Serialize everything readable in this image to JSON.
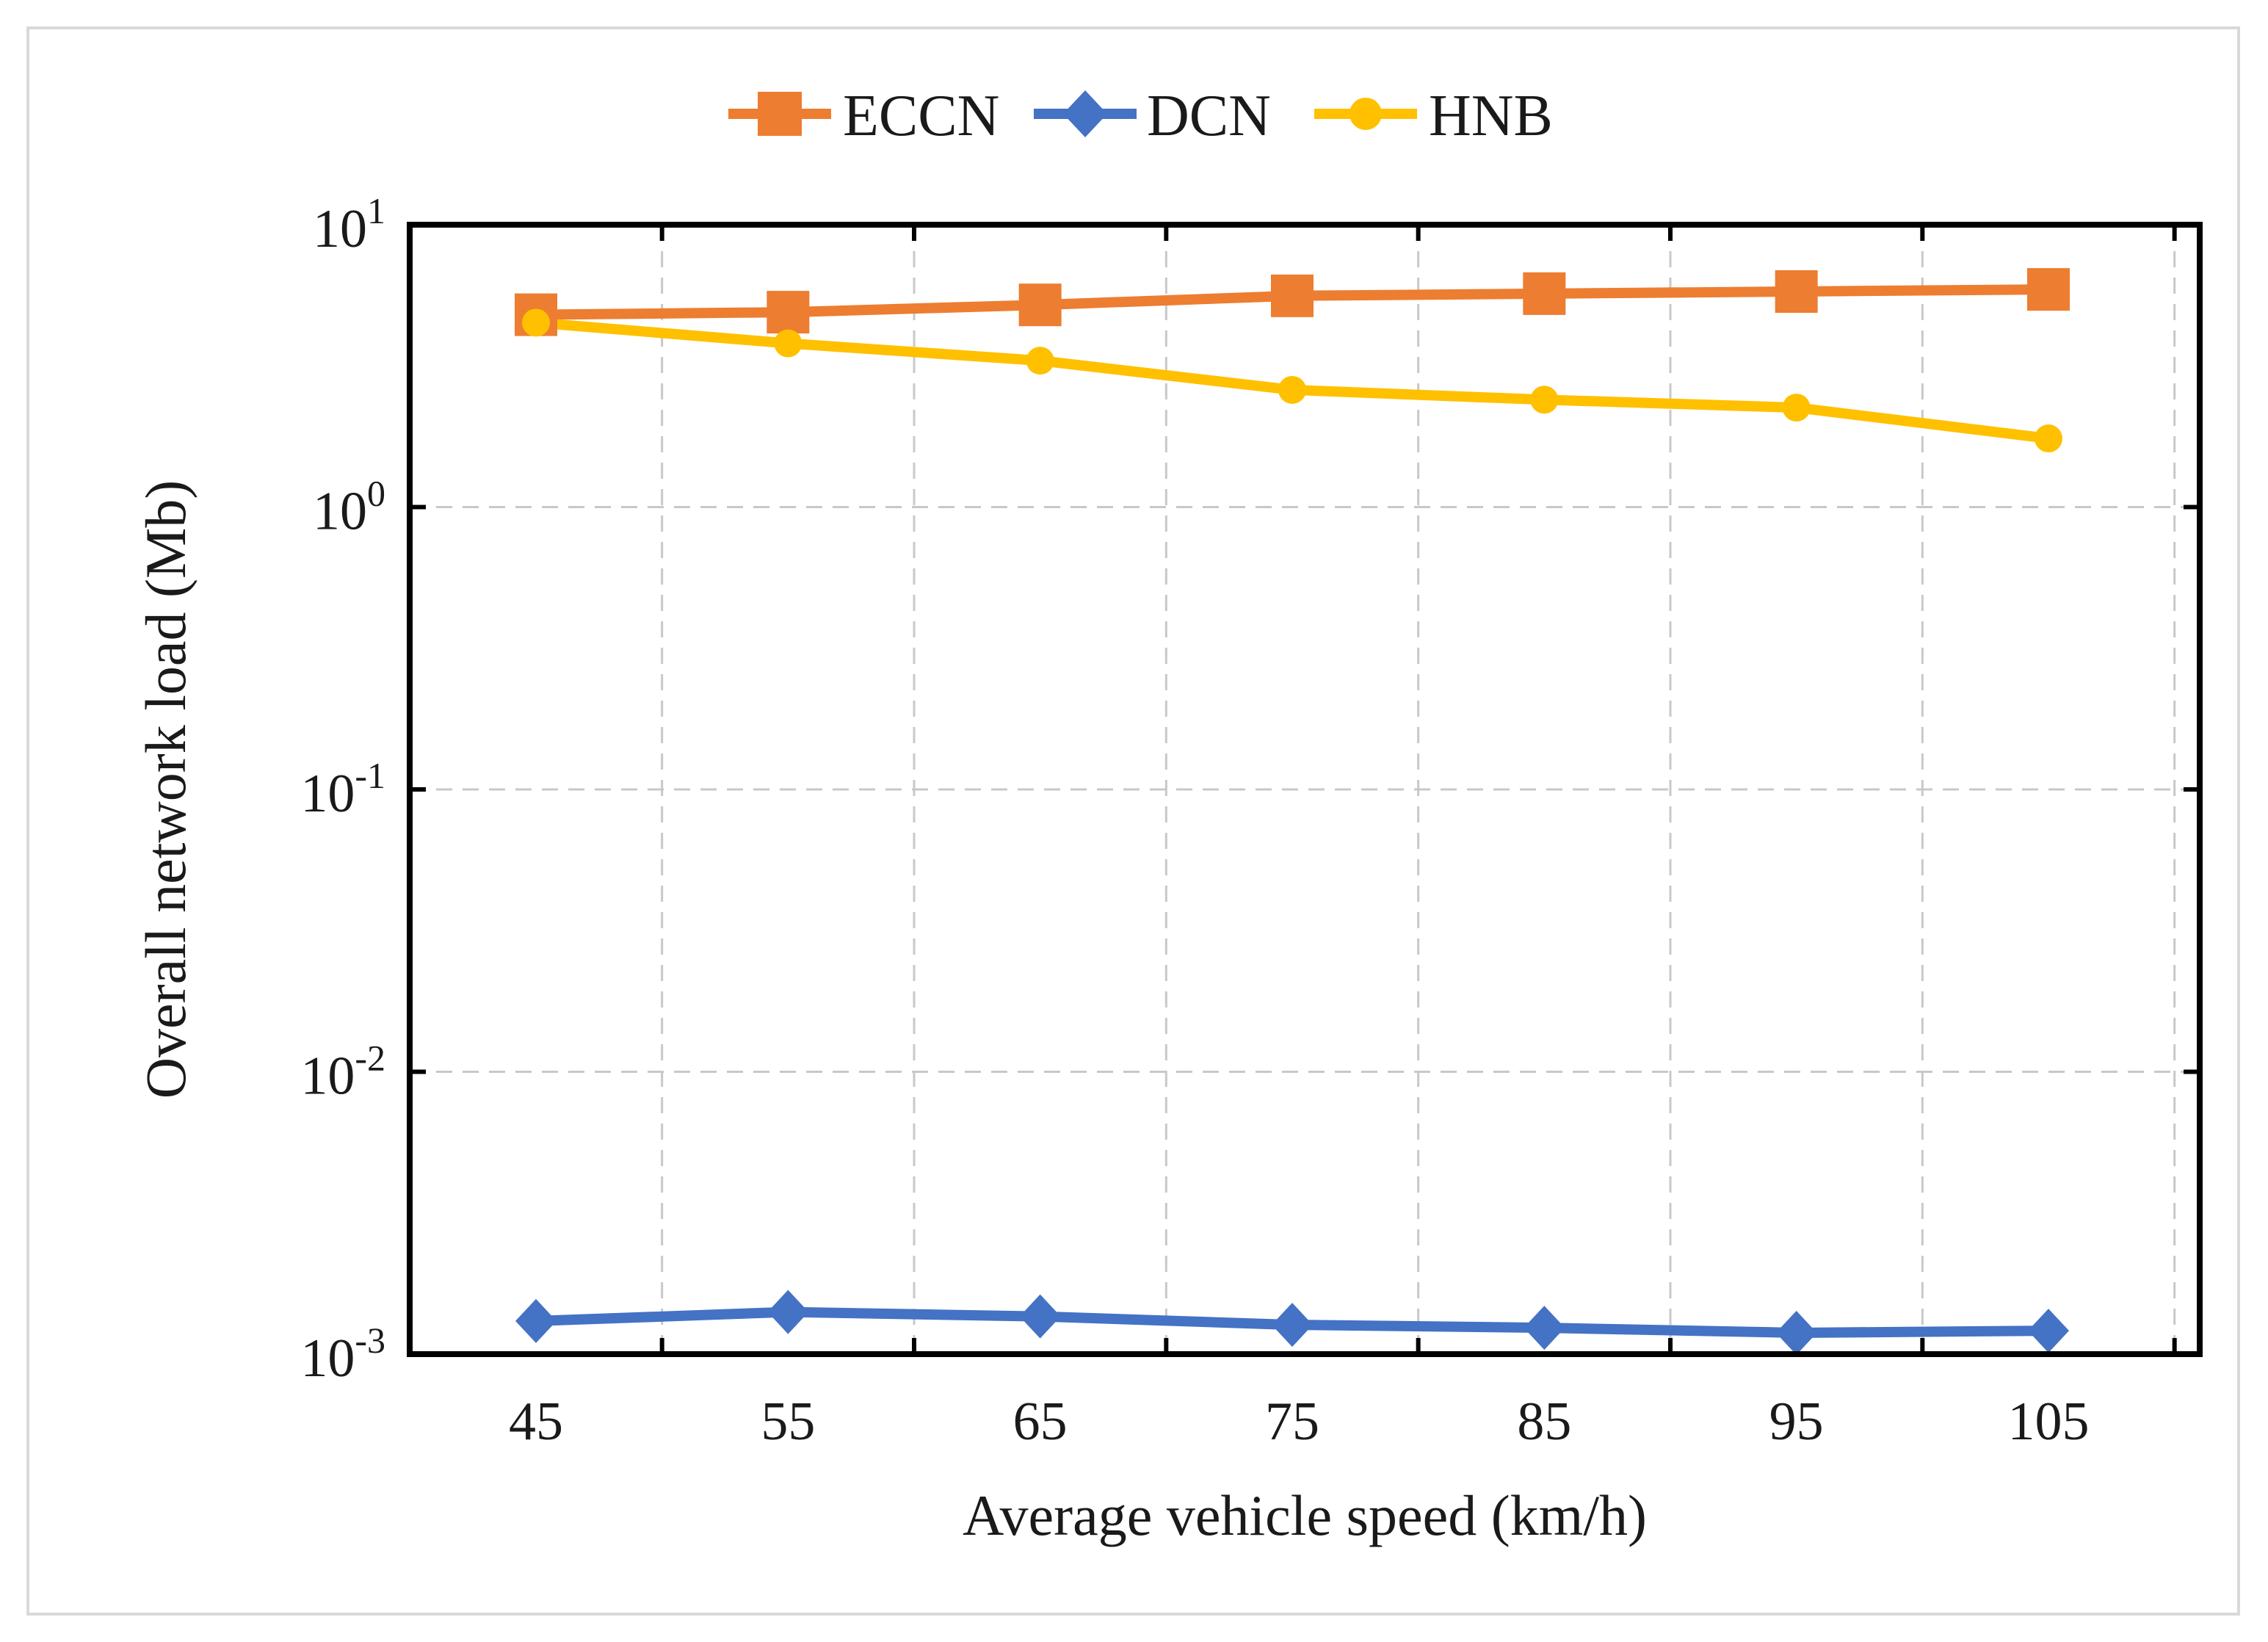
{
  "chart_data": {
    "type": "line",
    "title": "",
    "xlabel": "Average vehicle speed (km/h)",
    "ylabel": "Overall network load (Mb)",
    "yscale": "log",
    "ylim": [
      0.001,
      10
    ],
    "grid": true,
    "legend_position": "top-center",
    "categories": [
      "45",
      "55",
      "65",
      "75",
      "85",
      "95",
      "105"
    ],
    "x_ticks": [
      "45",
      "55",
      "65",
      "75",
      "85",
      "95",
      "105"
    ],
    "y_ticks": [
      {
        "value": 10,
        "base": "10",
        "exp": "1"
      },
      {
        "value": 1,
        "base": "10",
        "exp": "0"
      },
      {
        "value": 0.1,
        "base": "10",
        "exp": "-1"
      },
      {
        "value": 0.01,
        "base": "10",
        "exp": "-2"
      },
      {
        "value": 0.001,
        "base": "10",
        "exp": "-3"
      }
    ],
    "series": [
      {
        "name": "ECCN",
        "color": "#ed7d31",
        "marker": "square",
        "values": [
          4.8,
          4.9,
          5.2,
          5.6,
          5.7,
          5.8,
          5.9
        ]
      },
      {
        "name": "DCN",
        "color": "#4472c4",
        "marker": "diamond",
        "values": [
          0.00131,
          0.00141,
          0.00136,
          0.00127,
          0.00124,
          0.00119,
          0.00121
        ]
      },
      {
        "name": "HNB",
        "color": "#ffc000",
        "marker": "circle",
        "values": [
          4.5,
          3.8,
          3.3,
          2.6,
          2.4,
          2.25,
          1.75
        ]
      }
    ]
  }
}
